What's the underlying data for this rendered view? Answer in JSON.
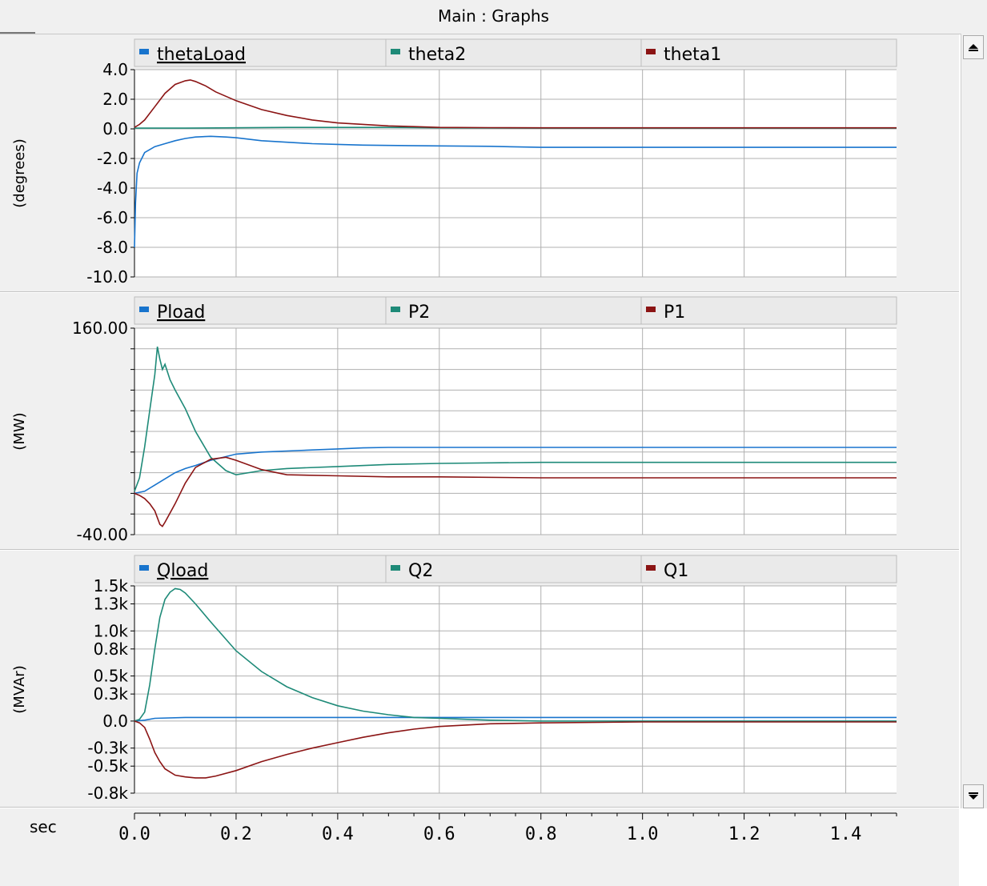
{
  "window": {
    "title": "Main : Graphs"
  },
  "time_axis": {
    "label": "sec",
    "ticks": [
      "0.0",
      "0.2",
      "0.4",
      "0.6",
      "0.8",
      "1.0",
      "1.2",
      "1.4"
    ]
  },
  "colors": {
    "blue": "#1874cd",
    "teal": "#1e8a78",
    "maroon": "#8b1414"
  },
  "chart_data": [
    {
      "type": "line",
      "ylabel": "(degrees)",
      "xlim": [
        0,
        1.5
      ],
      "ylim": [
        -10,
        4
      ],
      "y_ticks": [
        4,
        2,
        0,
        -2,
        -4,
        -6,
        -8,
        -10
      ],
      "y_tick_labels": [
        "4.0",
        "2.0",
        "0.0",
        "-2.0",
        "-4.0",
        "-6.0",
        "-8.0",
        "-10.0"
      ],
      "grid": true,
      "legend": "top",
      "series": [
        {
          "name": "thetaLoad",
          "color": "blue",
          "underline": true,
          "x": [
            0,
            0.002,
            0.005,
            0.01,
            0.02,
            0.04,
            0.06,
            0.08,
            0.1,
            0.12,
            0.15,
            0.18,
            0.2,
            0.25,
            0.3,
            0.35,
            0.4,
            0.45,
            0.5,
            0.6,
            0.7,
            0.8,
            1.0,
            1.2,
            1.5
          ],
          "y": [
            -8.0,
            -5.0,
            -3.0,
            -2.3,
            -1.6,
            -1.2,
            -1.0,
            -0.8,
            -0.65,
            -0.55,
            -0.5,
            -0.55,
            -0.6,
            -0.8,
            -0.9,
            -1.0,
            -1.05,
            -1.1,
            -1.12,
            -1.15,
            -1.18,
            -1.25,
            -1.25,
            -1.25,
            -1.25
          ]
        },
        {
          "name": "theta2",
          "color": "teal",
          "x": [
            0,
            0.1,
            0.3,
            0.5,
            0.6,
            0.8,
            1.0,
            1.5
          ],
          "y": [
            0.05,
            0.05,
            0.1,
            0.1,
            0.07,
            0.05,
            0.05,
            0.05
          ]
        },
        {
          "name": "theta1",
          "color": "maroon",
          "x": [
            0,
            0.01,
            0.02,
            0.04,
            0.06,
            0.08,
            0.1,
            0.11,
            0.12,
            0.14,
            0.16,
            0.2,
            0.25,
            0.3,
            0.35,
            0.4,
            0.45,
            0.5,
            0.55,
            0.6,
            0.7,
            0.8,
            1.0,
            1.5
          ],
          "y": [
            0.1,
            0.3,
            0.6,
            1.5,
            2.4,
            3.0,
            3.25,
            3.3,
            3.2,
            2.9,
            2.5,
            1.9,
            1.3,
            0.9,
            0.6,
            0.4,
            0.3,
            0.2,
            0.15,
            0.1,
            0.08,
            0.07,
            0.07,
            0.07
          ]
        }
      ]
    },
    {
      "type": "line",
      "ylabel": "(MW)",
      "xlim": [
        0,
        1.5
      ],
      "ylim": [
        -40,
        160
      ],
      "y_ticks": [
        160,
        140,
        120,
        100,
        80,
        60,
        40,
        20,
        0,
        -20,
        -40
      ],
      "y_tick_labels": [
        "160.00",
        "",
        "",
        "",
        "",
        "",
        "",
        "",
        "",
        "",
        "-40.00"
      ],
      "grid": true,
      "legend": "top",
      "series": [
        {
          "name": "Pload",
          "color": "blue",
          "underline": true,
          "x": [
            0,
            0.02,
            0.04,
            0.06,
            0.08,
            0.1,
            0.12,
            0.15,
            0.2,
            0.25,
            0.3,
            0.35,
            0.4,
            0.45,
            0.5,
            0.6,
            0.8,
            1.0,
            1.5
          ],
          "y": [
            0,
            2,
            8,
            14,
            20,
            24,
            27,
            32,
            38,
            40,
            41,
            42,
            43,
            44,
            44.5,
            44.5,
            44.5,
            44.5,
            44.5
          ]
        },
        {
          "name": "P2",
          "color": "teal",
          "x": [
            0,
            0.01,
            0.02,
            0.03,
            0.04,
            0.045,
            0.05,
            0.055,
            0.06,
            0.07,
            0.08,
            0.1,
            0.12,
            0.15,
            0.18,
            0.2,
            0.25,
            0.3,
            0.4,
            0.5,
            0.6,
            0.8,
            1.0,
            1.5
          ],
          "y": [
            2,
            15,
            45,
            80,
            115,
            142,
            130,
            120,
            125,
            110,
            100,
            82,
            60,
            35,
            22,
            18,
            22,
            24,
            26,
            28,
            29,
            30,
            30,
            30
          ]
        },
        {
          "name": "P1",
          "color": "maroon",
          "x": [
            0,
            0.01,
            0.02,
            0.03,
            0.04,
            0.05,
            0.055,
            0.06,
            0.08,
            0.1,
            0.12,
            0.15,
            0.18,
            0.2,
            0.25,
            0.3,
            0.4,
            0.5,
            0.6,
            0.8,
            1.0,
            1.5
          ],
          "y": [
            0,
            -2,
            -5,
            -10,
            -17,
            -30,
            -32,
            -28,
            -10,
            10,
            25,
            33,
            35,
            32,
            23,
            18,
            17,
            16,
            16,
            15,
            15,
            15
          ]
        }
      ]
    },
    {
      "type": "line",
      "ylabel": "(MVAr)",
      "xlim": [
        0,
        1.5
      ],
      "ylim": [
        -0.8,
        1.5
      ],
      "y_ticks": [
        1.5,
        1.3,
        1.0,
        0.8,
        0.5,
        0.3,
        0.0,
        -0.3,
        -0.5,
        -0.8
      ],
      "y_tick_labels": [
        "1.5k",
        "1.3k",
        "1.0k",
        "0.8k",
        "0.5k",
        "0.3k",
        "0.0",
        "-0.3k",
        "-0.5k",
        "-0.8k"
      ],
      "grid": true,
      "legend": "top",
      "series": [
        {
          "name": "Qload",
          "color": "blue",
          "underline": true,
          "x": [
            0,
            0.02,
            0.04,
            0.1,
            0.3,
            0.5,
            0.8,
            1.0,
            1.5
          ],
          "y": [
            0,
            0.01,
            0.03,
            0.04,
            0.04,
            0.04,
            0.04,
            0.04,
            0.04
          ]
        },
        {
          "name": "Q2",
          "color": "teal",
          "x": [
            0,
            0.01,
            0.02,
            0.03,
            0.04,
            0.05,
            0.06,
            0.07,
            0.08,
            0.09,
            0.1,
            0.12,
            0.15,
            0.2,
            0.25,
            0.3,
            0.35,
            0.4,
            0.45,
            0.5,
            0.55,
            0.6,
            0.7,
            0.8,
            1.0,
            1.5
          ],
          "y": [
            0,
            0.02,
            0.1,
            0.4,
            0.8,
            1.15,
            1.35,
            1.43,
            1.47,
            1.46,
            1.42,
            1.3,
            1.1,
            0.78,
            0.55,
            0.38,
            0.26,
            0.17,
            0.11,
            0.07,
            0.04,
            0.03,
            0.01,
            0.0,
            0.0,
            0.0
          ]
        },
        {
          "name": "Q1",
          "color": "maroon",
          "x": [
            0,
            0.01,
            0.02,
            0.03,
            0.04,
            0.05,
            0.06,
            0.08,
            0.1,
            0.12,
            0.14,
            0.16,
            0.2,
            0.25,
            0.3,
            0.35,
            0.4,
            0.45,
            0.5,
            0.55,
            0.6,
            0.7,
            0.8,
            1.0,
            1.5
          ],
          "y": [
            0,
            -0.02,
            -0.07,
            -0.2,
            -0.35,
            -0.45,
            -0.53,
            -0.6,
            -0.62,
            -0.63,
            -0.63,
            -0.61,
            -0.55,
            -0.45,
            -0.37,
            -0.3,
            -0.24,
            -0.18,
            -0.13,
            -0.09,
            -0.06,
            -0.03,
            -0.02,
            -0.01,
            -0.01
          ]
        }
      ]
    }
  ]
}
